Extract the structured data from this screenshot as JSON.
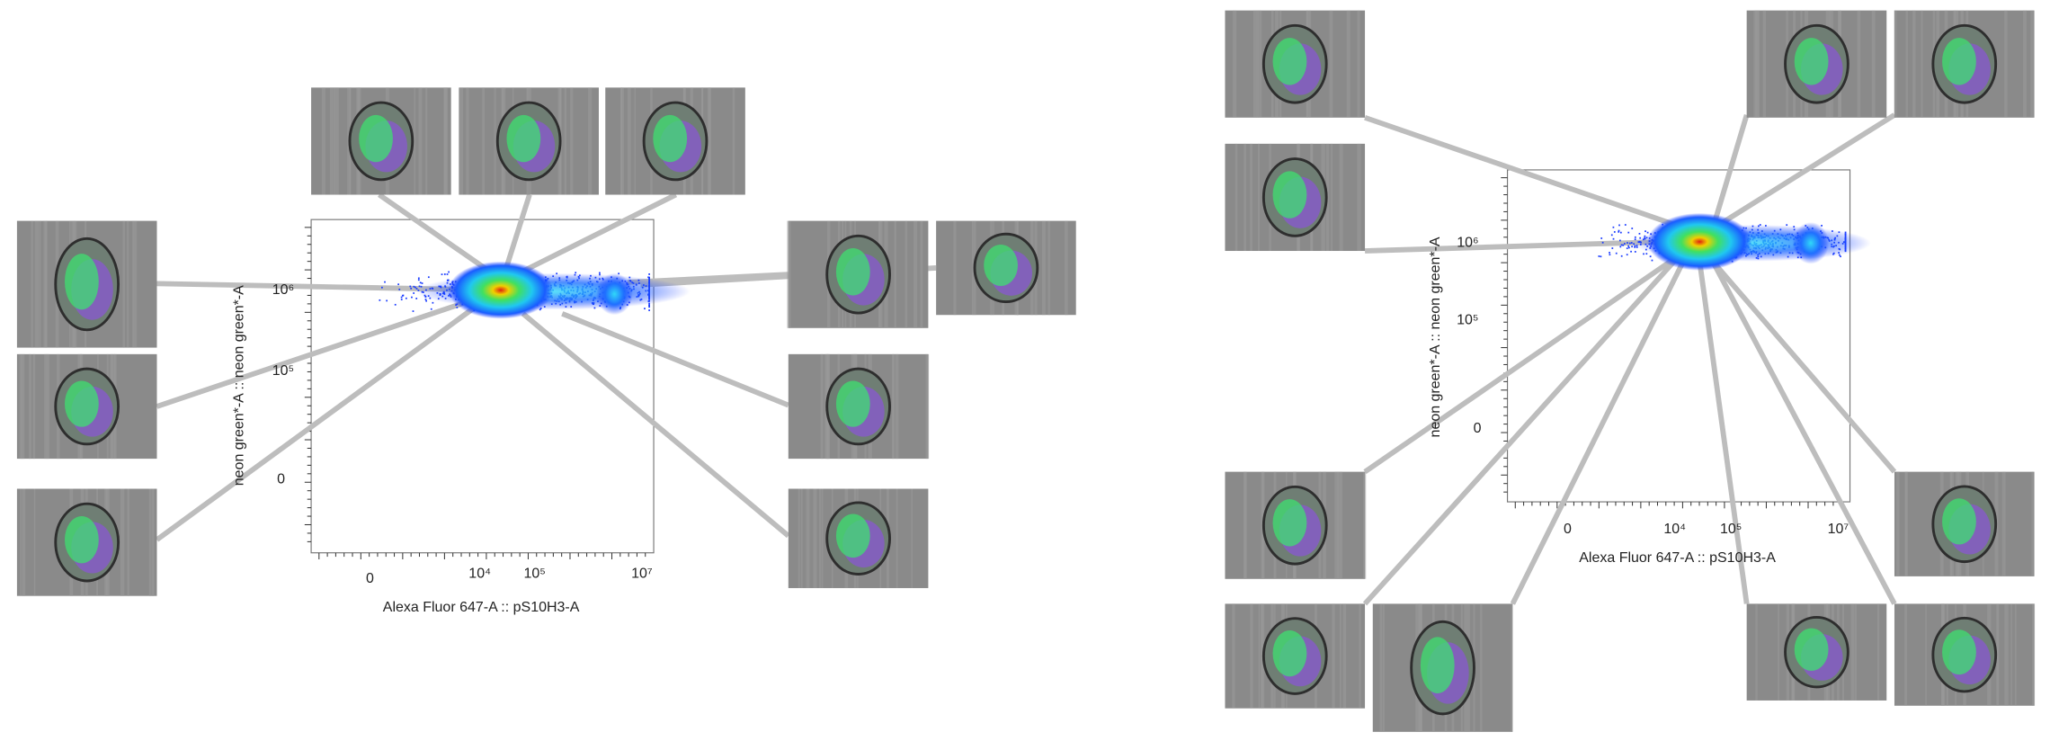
{
  "panels": [
    {
      "x_axis": {
        "label": "Alexa Fluor 647-A :: pS10H3-A",
        "ticks": [
          "0",
          "10⁴",
          "10⁵",
          "10⁷"
        ]
      },
      "y_axis": {
        "label": "neon green*-A :: neon green*-A",
        "ticks": [
          "10⁶",
          "10⁵",
          "0"
        ]
      }
    },
    {
      "x_axis": {
        "label": "Alexa Fluor 647-A :: pS10H3-A",
        "ticks": [
          "0",
          "10⁴",
          "10⁵",
          "10⁷"
        ]
      },
      "y_axis": {
        "label": "neon green*-A :: neon green*-A",
        "ticks": [
          "10⁶",
          "10⁵",
          "0"
        ]
      }
    }
  ]
}
